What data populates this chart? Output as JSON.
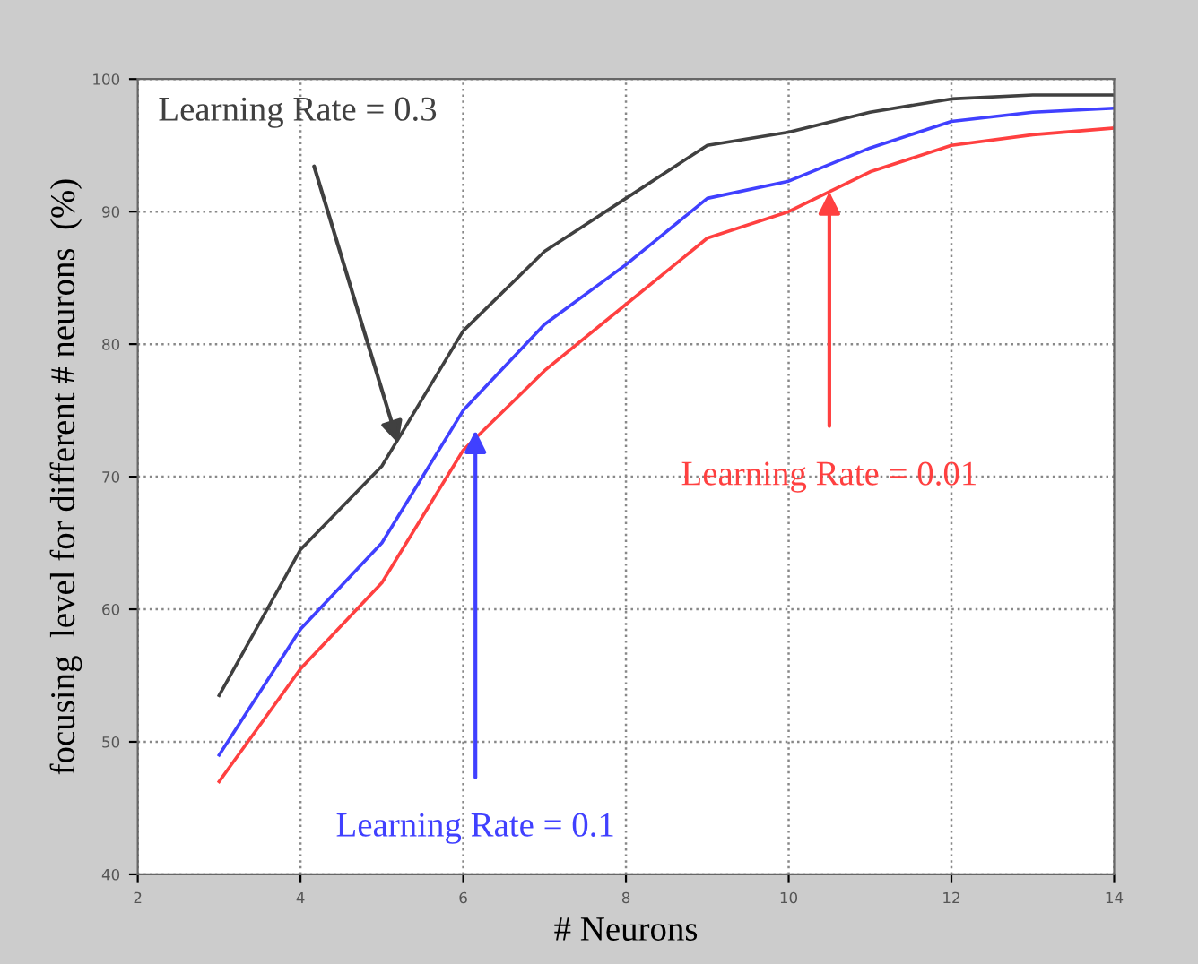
{
  "chart_data": {
    "type": "line",
    "xlabel": "# Neurons",
    "ylabel": "focusing  level for different # neurons  (%)",
    "x": [
      3,
      4,
      5,
      6,
      7,
      8,
      9,
      10,
      11,
      12,
      13,
      14
    ],
    "series": [
      {
        "color": "#404040",
        "values": [
          53.5,
          64.5,
          70.8,
          81,
          87,
          91,
          95,
          96,
          97.5,
          98.5,
          98.8,
          98.8
        ]
      },
      {
        "color": "#4040ff",
        "values": [
          49,
          58.5,
          65,
          75,
          81.5,
          86,
          91,
          92.3,
          94.8,
          96.8,
          97.5,
          97.8
        ]
      },
      {
        "color": "#ff4040",
        "values": [
          47,
          55.5,
          62,
          72,
          78,
          83,
          88,
          90,
          93,
          95,
          95.8,
          96.3
        ]
      }
    ],
    "xlim": [
      2,
      14
    ],
    "ylim": [
      40,
      100
    ],
    "xticks": [
      2,
      4,
      6,
      8,
      10,
      12,
      14
    ],
    "yticks": [
      40,
      50,
      60,
      70,
      80,
      90,
      100
    ],
    "grid": true,
    "line_style": "solid",
    "annotations": [
      {
        "text": "Learning Rate = 0.3",
        "x": 5.2,
        "y": 72.5
      },
      {
        "text": "Learning Rate = 0.1",
        "x": 6.15,
        "y": 73.5
      },
      {
        "text": "Learning Rate = 0.01",
        "x": 10.5,
        "y": 91.5
      }
    ]
  }
}
